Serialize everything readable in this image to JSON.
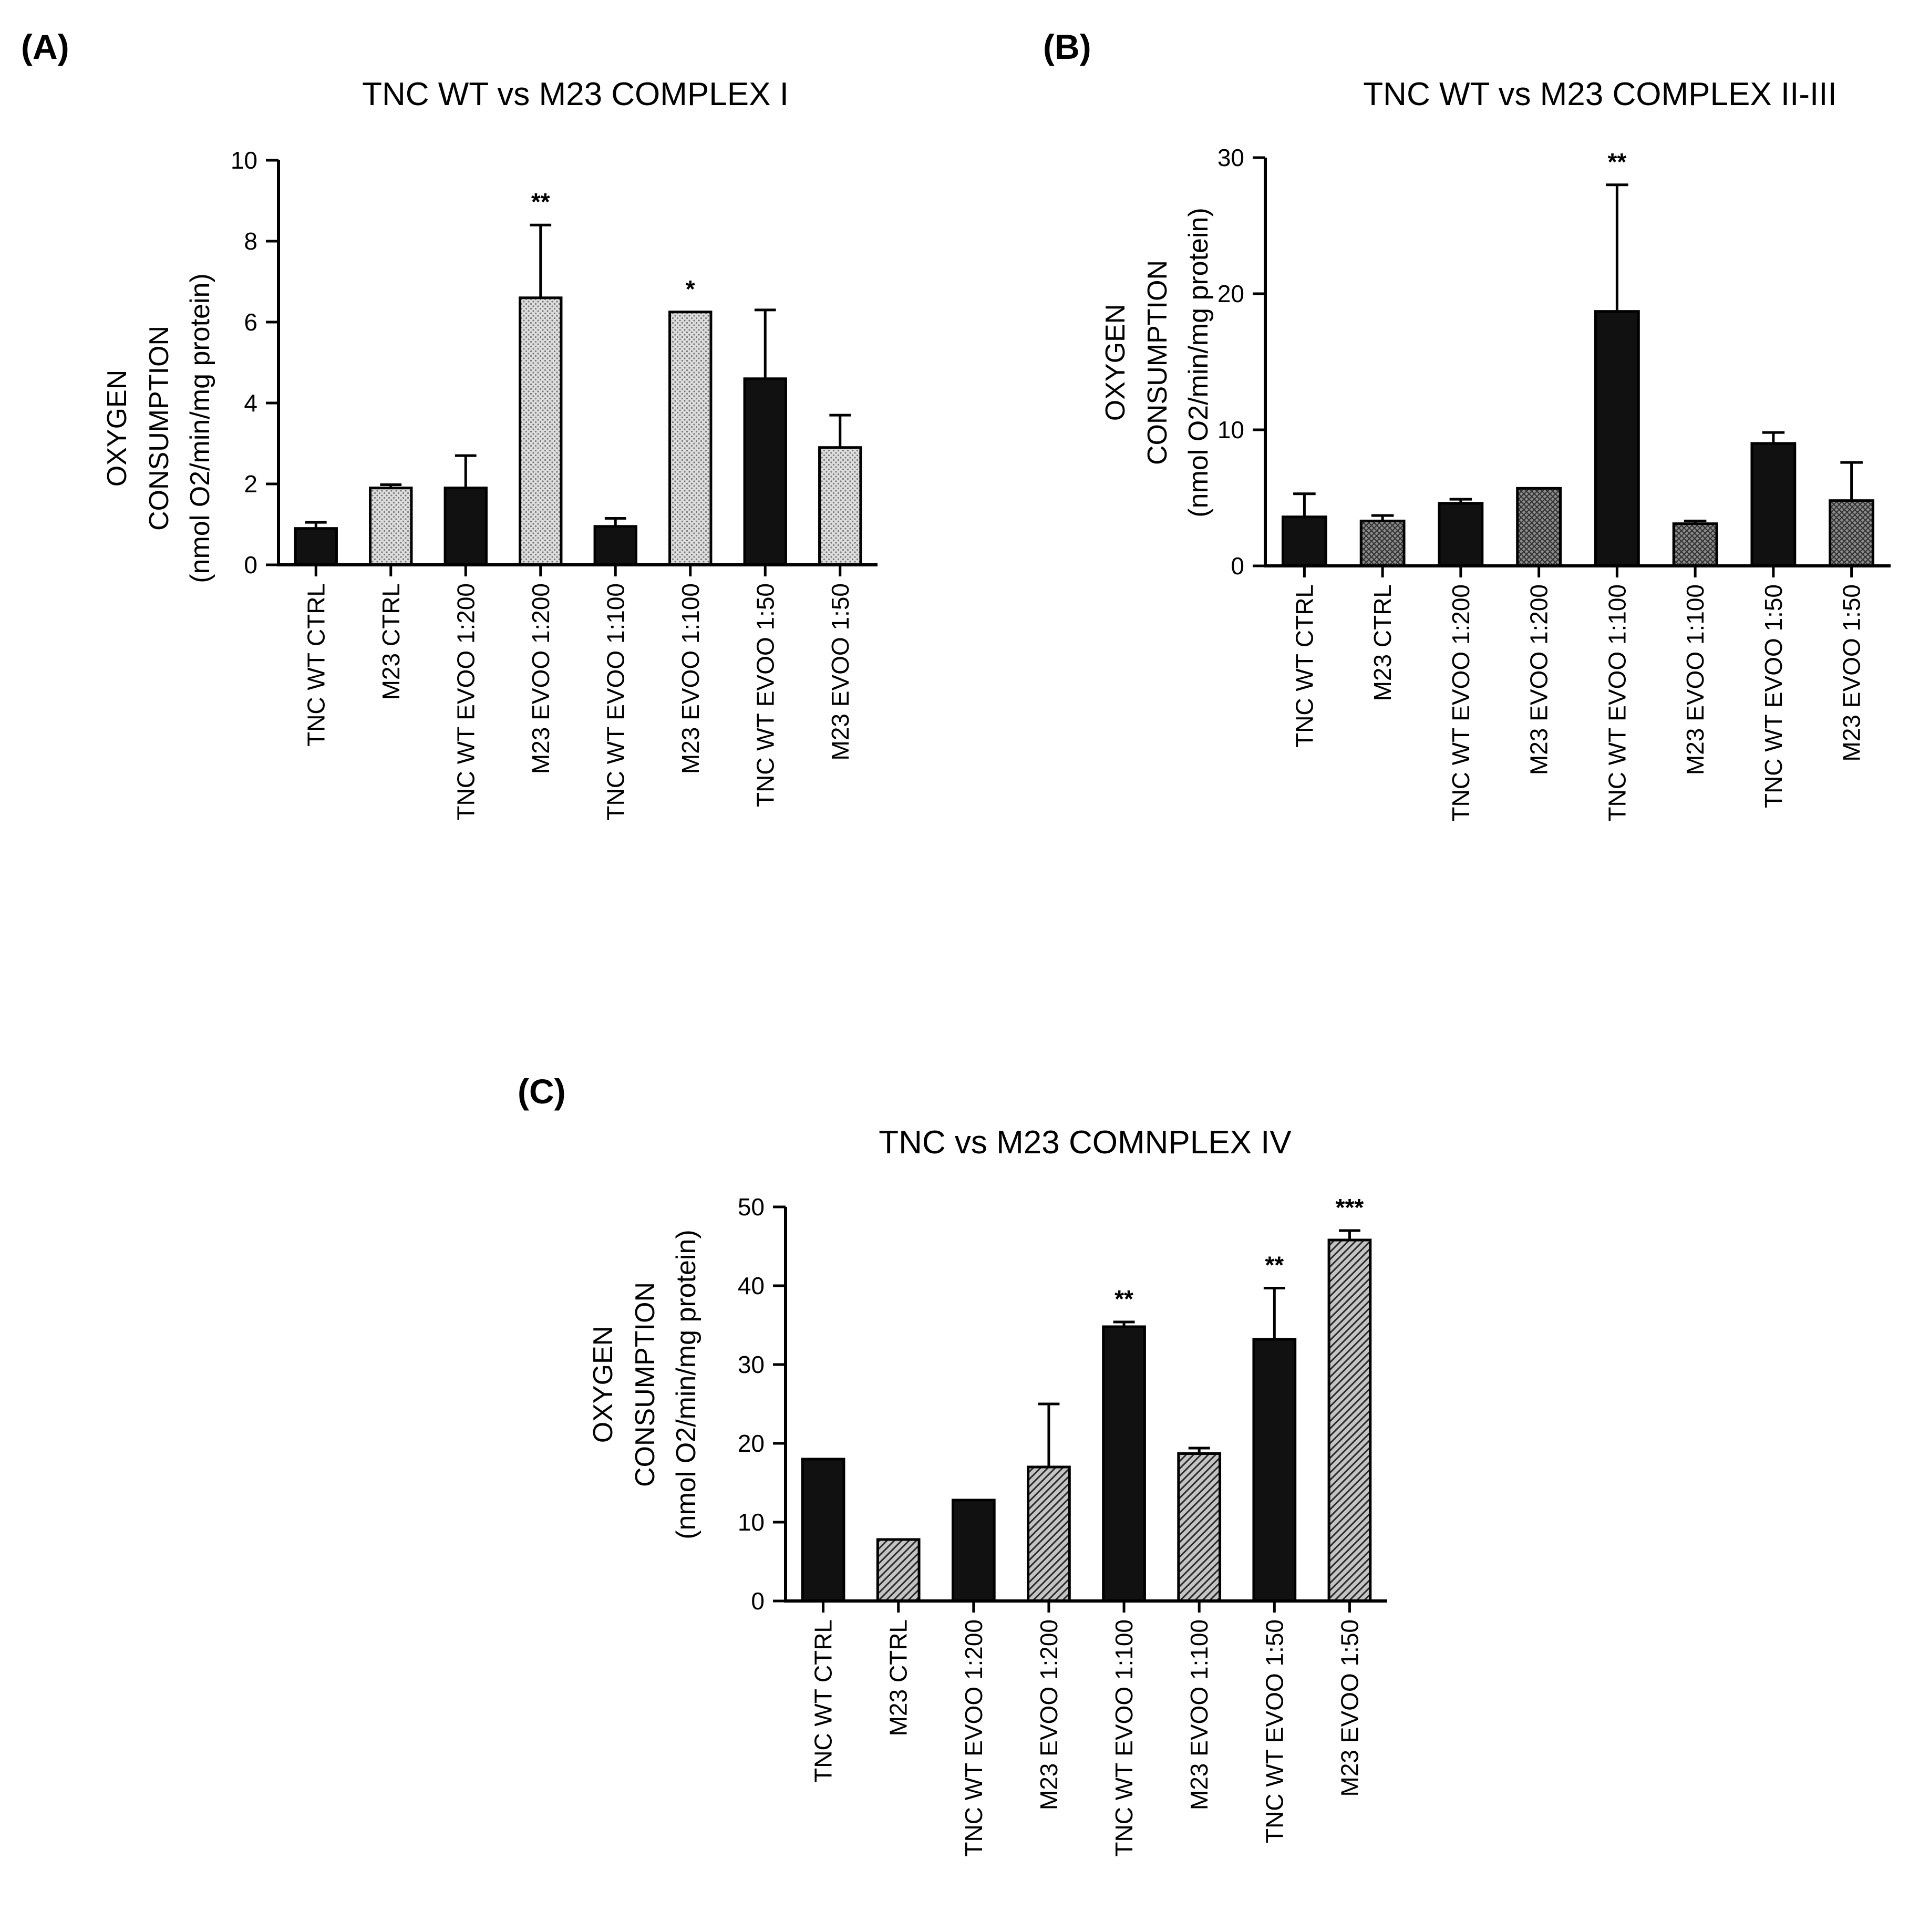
{
  "figure": {
    "colors": {
      "solid": "#111111",
      "patterned": "#b8b8b8",
      "axis": "#000000",
      "background": "#ffffff"
    }
  },
  "chart_data": [
    {
      "panel": "(A)",
      "type": "bar",
      "title": "TNC WT vs M23 COMPLEX I",
      "ylabel": [
        "OXYGEN",
        "CONSUMPTION",
        "(nmol O2/min/mg protein)"
      ],
      "xlabel": "",
      "ylim": [
        0,
        10
      ],
      "yticks": [
        0,
        2,
        4,
        6,
        8,
        10
      ],
      "categories": [
        "TNC WT CTRL",
        "M23 CTRL",
        "TNC WT EVOO 1:200",
        "M23 EVOO 1:200",
        "TNC WT EVOO 1:100",
        "M23  EVOO 1:100",
        "TNC WT EVOO 1:50",
        "M23  EVOO 1:50"
      ],
      "values": [
        0.9,
        1.9,
        1.9,
        6.6,
        0.95,
        6.25,
        4.6,
        2.9
      ],
      "errors": [
        0.15,
        0.08,
        0.8,
        1.8,
        0.2,
        0.0,
        1.7,
        0.8
      ],
      "styles": [
        "solid",
        "dotted",
        "solid",
        "dotted",
        "solid",
        "dotted",
        "solid",
        "dotted"
      ],
      "significance": [
        "",
        "",
        "",
        "**",
        "",
        "*",
        "",
        ""
      ]
    },
    {
      "panel": "(B)",
      "type": "bar",
      "title": "TNC WT vs M23 COMPLEX II-III",
      "ylabel": [
        "OXYGEN",
        "CONSUMPTION",
        "(nmol O2/min/mg protein)"
      ],
      "xlabel": "",
      "ylim": [
        0,
        30
      ],
      "yticks": [
        0,
        10,
        20,
        30
      ],
      "categories": [
        "TNC WT CTRL",
        "M23 CTRL",
        "TNC WT EVOO 1:200",
        "M23 EVOO 1:200",
        "TNC WT EVOO 1:100",
        "M23  EVOO 1:100",
        "TNC WT EVOO 1:50",
        "M23  EVOO 1:50"
      ],
      "values": [
        3.6,
        3.3,
        4.6,
        5.7,
        18.7,
        3.1,
        9.0,
        4.8
      ],
      "errors": [
        1.7,
        0.4,
        0.3,
        0.0,
        9.3,
        0.2,
        0.8,
        2.8
      ],
      "styles": [
        "solid",
        "crosshatch",
        "solid",
        "crosshatch",
        "solid",
        "crosshatch",
        "solid",
        "crosshatch"
      ],
      "significance": [
        "",
        "",
        "",
        "",
        "**",
        "",
        "",
        ""
      ]
    },
    {
      "panel": "(C)",
      "type": "bar",
      "title": "TNC vs M23 COMNPLEX IV",
      "ylabel": [
        "OXYGEN",
        "CONSUMPTION",
        "(nmol O2/min/mg protein)"
      ],
      "xlabel": "",
      "ylim": [
        0,
        50
      ],
      "yticks": [
        0,
        10,
        20,
        30,
        40,
        50
      ],
      "categories": [
        "TNC WT CTRL",
        "M23 CTRL",
        "TNC WT EVOO 1:200",
        "M23 EVOO 1:200",
        "TNC WT EVOO 1:100",
        "M23  EVOO 1:100",
        "TNC WT EVOO 1:50",
        "M23  EVOO 1:50"
      ],
      "values": [
        18.0,
        7.8,
        12.8,
        17.0,
        34.8,
        18.7,
        33.2,
        45.8
      ],
      "errors": [
        0.0,
        0.0,
        0.0,
        8.0,
        0.6,
        0.7,
        6.5,
        1.2
      ],
      "styles": [
        "solid",
        "diagonal",
        "solid",
        "diagonal",
        "solid",
        "diagonal",
        "solid",
        "diagonal"
      ],
      "significance": [
        "",
        "",
        "",
        "",
        "**",
        "",
        "**",
        "***"
      ]
    }
  ]
}
